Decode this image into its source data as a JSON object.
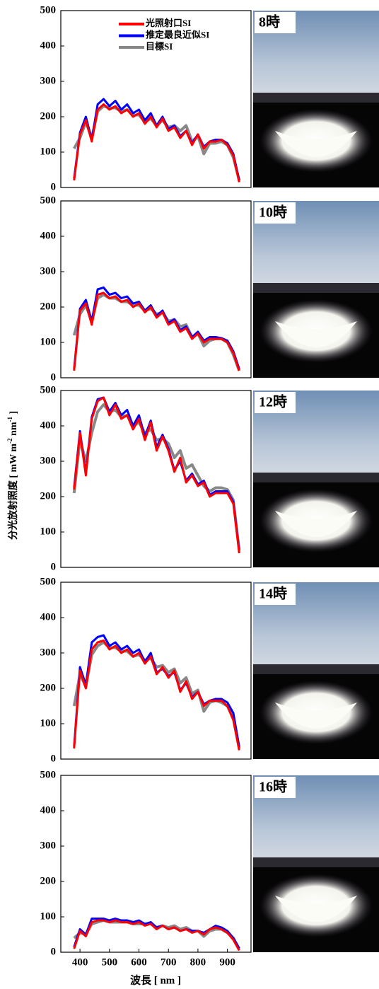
{
  "chart_data": [
    {
      "type": "line",
      "x": [
        380,
        400,
        420,
        440,
        460,
        480,
        500,
        520,
        540,
        560,
        580,
        600,
        620,
        640,
        660,
        680,
        700,
        720,
        740,
        760,
        780,
        800,
        820,
        840,
        860,
        880,
        900,
        920,
        940
      ],
      "xlim": [
        335,
        980
      ],
      "ylim": [
        0,
        500
      ],
      "yticks": [
        0,
        100,
        200,
        300,
        400,
        500
      ],
      "legend": "upper right",
      "annotation": "8時",
      "series": [
        {
          "name": "光照射口SI",
          "color": "#ff0000",
          "values": [
            20,
            150,
            190,
            130,
            220,
            235,
            220,
            230,
            210,
            220,
            200,
            210,
            180,
            200,
            170,
            195,
            160,
            170,
            140,
            160,
            120,
            150,
            110,
            130,
            130,
            135,
            120,
            90,
            15
          ]
        },
        {
          "name": "推定最良近似SI",
          "color": "#0000ff",
          "values": [
            25,
            155,
            200,
            135,
            235,
            250,
            230,
            245,
            220,
            235,
            210,
            220,
            190,
            210,
            175,
            200,
            165,
            175,
            145,
            160,
            125,
            150,
            115,
            130,
            135,
            135,
            125,
            95,
            20
          ]
        },
        {
          "name": "目標SI",
          "color": "#888888",
          "values": [
            110,
            140,
            185,
            140,
            215,
            230,
            225,
            225,
            215,
            220,
            205,
            205,
            185,
            195,
            175,
            190,
            170,
            175,
            160,
            175,
            130,
            145,
            95,
            125,
            125,
            130,
            120,
            85,
            20
          ]
        }
      ]
    },
    {
      "type": "line",
      "x": [
        380,
        400,
        420,
        440,
        460,
        480,
        500,
        520,
        540,
        560,
        580,
        600,
        620,
        640,
        660,
        680,
        700,
        720,
        740,
        760,
        780,
        800,
        820,
        840,
        860,
        880,
        900,
        920,
        940
      ],
      "xlim": [
        335,
        980
      ],
      "ylim": [
        0,
        500
      ],
      "yticks": [
        0,
        100,
        200,
        300,
        400,
        500
      ],
      "annotation": "10時",
      "series": [
        {
          "color": "#ff0000",
          "values": [
            20,
            190,
            210,
            150,
            235,
            240,
            225,
            230,
            215,
            220,
            200,
            210,
            185,
            200,
            170,
            185,
            150,
            160,
            130,
            140,
            110,
            125,
            100,
            110,
            110,
            110,
            100,
            70,
            20
          ]
        },
        {
          "color": "#0000ff",
          "values": [
            25,
            195,
            220,
            160,
            250,
            255,
            235,
            240,
            225,
            230,
            210,
            215,
            190,
            205,
            175,
            190,
            155,
            165,
            135,
            145,
            115,
            130,
            105,
            115,
            115,
            112,
            105,
            75,
            25
          ]
        },
        {
          "color": "#888888",
          "values": [
            120,
            180,
            205,
            160,
            225,
            235,
            225,
            225,
            215,
            215,
            205,
            205,
            190,
            195,
            180,
            185,
            160,
            165,
            145,
            150,
            115,
            125,
            90,
            105,
            110,
            110,
            100,
            65,
            20
          ]
        }
      ]
    },
    {
      "type": "line",
      "x": [
        380,
        400,
        420,
        440,
        460,
        480,
        500,
        520,
        540,
        560,
        580,
        600,
        620,
        640,
        660,
        680,
        700,
        720,
        740,
        760,
        780,
        800,
        820,
        840,
        860,
        880,
        900,
        920,
        940
      ],
      "xlim": [
        335,
        980
      ],
      "ylim": [
        0,
        500
      ],
      "yticks": [
        0,
        100,
        200,
        300,
        400,
        500
      ],
      "annotation": "12時",
      "series": [
        {
          "color": "#ff0000",
          "values": [
            220,
            380,
            260,
            420,
            470,
            480,
            430,
            460,
            420,
            430,
            390,
            420,
            360,
            410,
            330,
            370,
            330,
            270,
            310,
            240,
            260,
            230,
            240,
            200,
            210,
            210,
            210,
            180,
            40
          ]
        },
        {
          "color": "#0000ff",
          "values": [
            225,
            385,
            265,
            425,
            475,
            480,
            440,
            465,
            430,
            445,
            400,
            430,
            370,
            415,
            340,
            375,
            335,
            275,
            300,
            245,
            265,
            235,
            245,
            205,
            215,
            215,
            215,
            185,
            45
          ]
        },
        {
          "color": "#888888",
          "values": [
            210,
            360,
            300,
            380,
            440,
            460,
            440,
            445,
            425,
            430,
            400,
            410,
            380,
            390,
            360,
            365,
            350,
            310,
            330,
            280,
            290,
            260,
            230,
            215,
            225,
            225,
            220,
            190,
            50
          ]
        }
      ]
    },
    {
      "type": "line",
      "x": [
        380,
        400,
        420,
        440,
        460,
        480,
        500,
        520,
        540,
        560,
        580,
        600,
        620,
        640,
        660,
        680,
        700,
        720,
        740,
        760,
        780,
        800,
        820,
        840,
        860,
        880,
        900,
        920,
        940
      ],
      "xlim": [
        335,
        980
      ],
      "ylim": [
        0,
        500
      ],
      "yticks": [
        0,
        100,
        200,
        300,
        400,
        500
      ],
      "annotation": "14時",
      "series": [
        {
          "color": "#ff0000",
          "values": [
            30,
            250,
            200,
            310,
            330,
            335,
            310,
            320,
            300,
            310,
            290,
            300,
            270,
            290,
            240,
            260,
            230,
            250,
            190,
            220,
            170,
            190,
            150,
            165,
            165,
            165,
            150,
            110,
            25
          ]
        },
        {
          "color": "#0000ff",
          "values": [
            35,
            260,
            210,
            330,
            345,
            350,
            320,
            330,
            310,
            320,
            300,
            310,
            275,
            300,
            245,
            255,
            235,
            245,
            195,
            215,
            175,
            190,
            155,
            165,
            170,
            170,
            160,
            130,
            35
          ]
        },
        {
          "color": "#888888",
          "values": [
            150,
            240,
            205,
            295,
            320,
            330,
            315,
            315,
            305,
            305,
            290,
            295,
            280,
            285,
            260,
            265,
            245,
            255,
            215,
            230,
            185,
            195,
            135,
            160,
            165,
            160,
            150,
            115,
            30
          ]
        }
      ]
    },
    {
      "type": "line",
      "x": [
        380,
        400,
        420,
        440,
        460,
        480,
        500,
        520,
        540,
        560,
        580,
        600,
        620,
        640,
        660,
        680,
        700,
        720,
        740,
        760,
        780,
        800,
        820,
        840,
        860,
        880,
        900,
        920,
        940
      ],
      "xlim": [
        335,
        980
      ],
      "ylim": [
        0,
        500
      ],
      "yticks": [
        0,
        100,
        200,
        300,
        400,
        500
      ],
      "xticks": [
        400,
        500,
        600,
        700,
        800,
        900
      ],
      "annotation": "16時",
      "series": [
        {
          "color": "#ff0000",
          "values": [
            10,
            60,
            45,
            85,
            90,
            90,
            85,
            90,
            85,
            85,
            80,
            85,
            75,
            80,
            65,
            75,
            65,
            70,
            60,
            65,
            55,
            60,
            50,
            65,
            70,
            65,
            55,
            35,
            5
          ]
        },
        {
          "color": "#0000ff",
          "values": [
            15,
            65,
            50,
            95,
            95,
            95,
            90,
            95,
            90,
            90,
            85,
            90,
            80,
            85,
            70,
            75,
            65,
            70,
            60,
            65,
            60,
            60,
            55,
            65,
            75,
            70,
            60,
            40,
            10
          ]
        },
        {
          "color": "#888888",
          "values": [
            40,
            55,
            50,
            80,
            85,
            90,
            85,
            85,
            85,
            85,
            80,
            80,
            80,
            80,
            70,
            75,
            70,
            75,
            65,
            70,
            60,
            60,
            45,
            60,
            65,
            65,
            55,
            40,
            10
          ]
        }
      ]
    }
  ],
  "y_label": [
    "分光放射照度 [ mW m",
    "-2",
    " nm",
    "-1",
    " ]"
  ],
  "x_label": "波長 [ nm ]"
}
